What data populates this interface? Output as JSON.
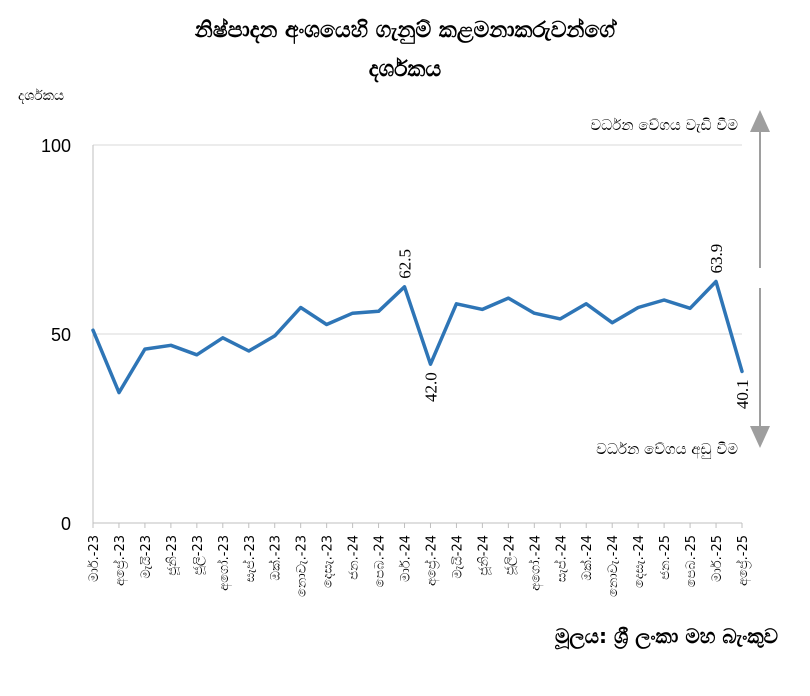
{
  "title_line1": "නිෂ්පාදන අංශයෙහි ගැනුම් කළමනාකරුවන්ගේ",
  "title_line2": "දර්ශකය",
  "source": "මූලය: ශ්‍රී ලංකා මහ බැංකුව",
  "colors": {
    "line": "#2e75b6",
    "arrow": "#9e9e9e",
    "grid": "#d9d9d9",
    "axis": "#bfbfbf"
  },
  "annotations": {
    "up": "වර්ධන වේගය වැඩි වීම",
    "down": "වර්ධන වේගය අඩු වීම"
  },
  "chart_data": {
    "type": "line",
    "ylabel": "දර්ශකය",
    "ylim": [
      0,
      100
    ],
    "yticks": [
      0,
      50,
      100
    ],
    "grid": true,
    "categories": [
      "මාර්.-23",
      "අප්‍රේ.-23",
      "මැයි-23",
      "ජූනි-23",
      "ජූලි-23",
      "අගෝ.-23",
      "සැප්.-23",
      "ඔක්.-23",
      "නොවැ.-23",
      "දෙසැ.-23",
      "ජන.-24",
      "පෙබ.-24",
      "මාර්.-24",
      "අප්‍රේ.-24",
      "මැයි-24",
      "ජූනි-24",
      "ජූලි-24",
      "අගෝ.-24",
      "සැප්.-24",
      "ඔක්.-24",
      "නොවැ.-24",
      "දෙසැ.-24",
      "ජන.-25",
      "පෙබ.-25",
      "මාර්.-25",
      "අප්‍රේ.-25"
    ],
    "values": [
      51.0,
      34.5,
      46.0,
      47.0,
      44.5,
      49.0,
      45.5,
      49.5,
      57.0,
      52.5,
      55.5,
      56.0,
      62.5,
      42.0,
      58.0,
      56.5,
      59.5,
      55.5,
      54.0,
      58.0,
      53.0,
      57.0,
      59.0,
      56.8,
      63.9,
      40.1
    ],
    "data_labels": [
      {
        "index": 12,
        "text": "62.5"
      },
      {
        "index": 13,
        "text": "42.0"
      },
      {
        "index": 24,
        "text": "63.9"
      },
      {
        "index": 25,
        "text": "40.1"
      }
    ]
  }
}
